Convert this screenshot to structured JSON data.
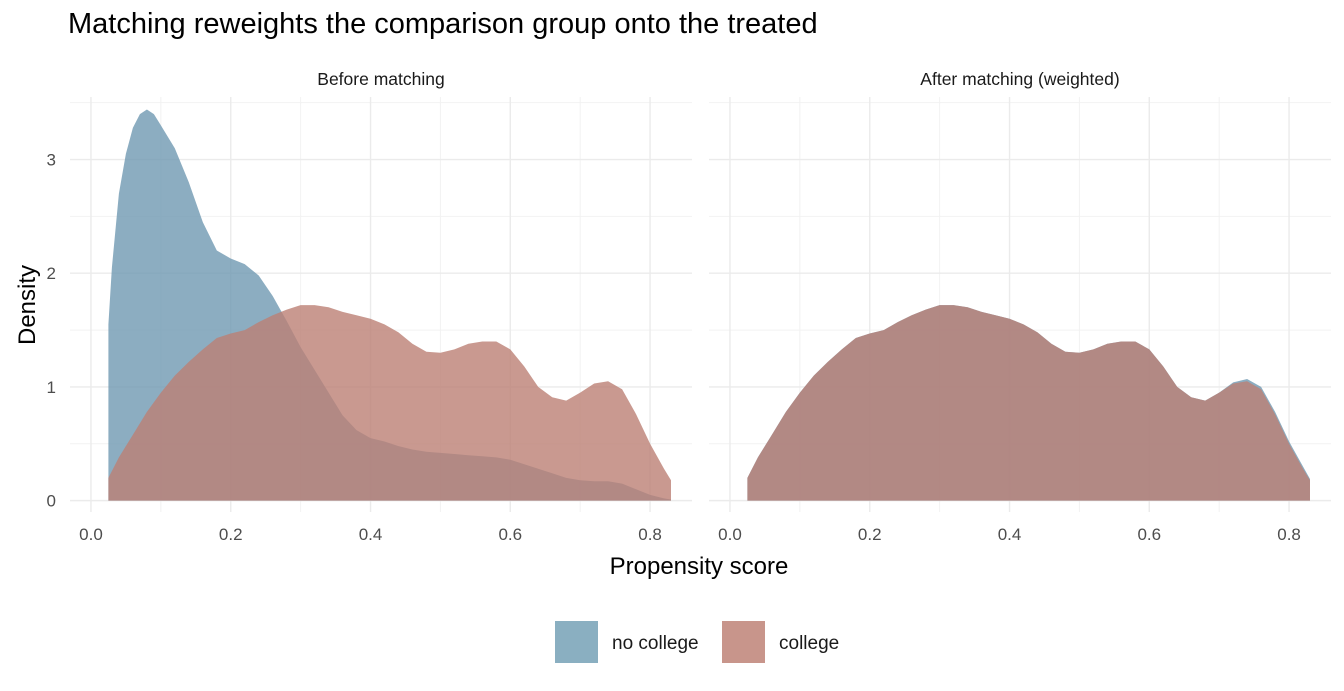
{
  "chart_data": {
    "type": "area",
    "title": "Matching reweights the comparison group onto the treated",
    "xlabel": "Propensity score",
    "ylabel": "Density",
    "xlim": [
      -0.03,
      0.86
    ],
    "ylim": [
      -0.1,
      3.55
    ],
    "x_ticks": [
      "0.0",
      "0.2",
      "0.4",
      "0.6",
      "0.8"
    ],
    "x_tick_values": [
      0.0,
      0.2,
      0.4,
      0.6,
      0.8
    ],
    "y_ticks": [
      "0",
      "1",
      "2",
      "3"
    ],
    "y_tick_values": [
      0,
      1,
      2,
      3
    ],
    "grid": true,
    "legend_position": "bottom",
    "series_colors": {
      "no college": "#6f99b1",
      "college": "#bb7f74"
    },
    "legend": [
      {
        "name": "no college",
        "color": "#8aafc1"
      },
      {
        "name": "college",
        "color": "#c8958b"
      }
    ],
    "panels": [
      {
        "title": "Before matching",
        "series": [
          {
            "name": "no college",
            "x": [
              0.025,
              0.03,
              0.04,
              0.05,
              0.06,
              0.07,
              0.08,
              0.09,
              0.1,
              0.12,
              0.14,
              0.16,
              0.18,
              0.2,
              0.22,
              0.24,
              0.26,
              0.28,
              0.3,
              0.32,
              0.34,
              0.36,
              0.38,
              0.4,
              0.42,
              0.44,
              0.46,
              0.48,
              0.5,
              0.52,
              0.54,
              0.56,
              0.58,
              0.6,
              0.62,
              0.64,
              0.66,
              0.68,
              0.7,
              0.72,
              0.74,
              0.76,
              0.78,
              0.8,
              0.82,
              0.83
            ],
            "y": [
              1.55,
              2.05,
              2.7,
              3.05,
              3.28,
              3.4,
              3.44,
              3.4,
              3.3,
              3.1,
              2.8,
              2.45,
              2.2,
              2.13,
              2.08,
              1.98,
              1.8,
              1.58,
              1.35,
              1.15,
              0.95,
              0.75,
              0.62,
              0.55,
              0.52,
              0.48,
              0.45,
              0.43,
              0.42,
              0.41,
              0.4,
              0.39,
              0.38,
              0.36,
              0.32,
              0.28,
              0.24,
              0.2,
              0.18,
              0.17,
              0.17,
              0.15,
              0.1,
              0.05,
              0.02,
              0.01
            ]
          },
          {
            "name": "college",
            "x": [
              0.025,
              0.04,
              0.06,
              0.08,
              0.1,
              0.12,
              0.14,
              0.16,
              0.18,
              0.2,
              0.22,
              0.24,
              0.26,
              0.28,
              0.3,
              0.32,
              0.34,
              0.36,
              0.38,
              0.4,
              0.42,
              0.44,
              0.46,
              0.48,
              0.5,
              0.52,
              0.54,
              0.56,
              0.58,
              0.6,
              0.62,
              0.64,
              0.66,
              0.68,
              0.7,
              0.72,
              0.74,
              0.76,
              0.78,
              0.8,
              0.82,
              0.83
            ],
            "y": [
              0.2,
              0.38,
              0.58,
              0.78,
              0.95,
              1.1,
              1.22,
              1.33,
              1.43,
              1.47,
              1.5,
              1.57,
              1.63,
              1.68,
              1.72,
              1.72,
              1.7,
              1.66,
              1.63,
              1.6,
              1.55,
              1.48,
              1.38,
              1.31,
              1.3,
              1.33,
              1.38,
              1.4,
              1.4,
              1.33,
              1.18,
              1.0,
              0.91,
              0.88,
              0.95,
              1.03,
              1.05,
              0.98,
              0.76,
              0.5,
              0.28,
              0.18
            ]
          }
        ]
      },
      {
        "title": "After matching (weighted)",
        "series": [
          {
            "name": "no college",
            "x": [
              0.025,
              0.04,
              0.06,
              0.08,
              0.1,
              0.12,
              0.14,
              0.16,
              0.18,
              0.2,
              0.22,
              0.24,
              0.26,
              0.28,
              0.3,
              0.32,
              0.34,
              0.36,
              0.38,
              0.4,
              0.42,
              0.44,
              0.46,
              0.48,
              0.5,
              0.52,
              0.54,
              0.56,
              0.58,
              0.6,
              0.62,
              0.64,
              0.66,
              0.68,
              0.7,
              0.72,
              0.74,
              0.76,
              0.78,
              0.8,
              0.82,
              0.83
            ],
            "y": [
              0.2,
              0.38,
              0.58,
              0.78,
              0.95,
              1.1,
              1.22,
              1.33,
              1.43,
              1.47,
              1.5,
              1.57,
              1.63,
              1.68,
              1.72,
              1.72,
              1.7,
              1.66,
              1.63,
              1.6,
              1.55,
              1.48,
              1.38,
              1.31,
              1.3,
              1.33,
              1.38,
              1.4,
              1.4,
              1.33,
              1.18,
              1.0,
              0.91,
              0.88,
              0.95,
              1.04,
              1.07,
              1.0,
              0.78,
              0.52,
              0.3,
              0.19
            ]
          },
          {
            "name": "college",
            "x": [
              0.025,
              0.04,
              0.06,
              0.08,
              0.1,
              0.12,
              0.14,
              0.16,
              0.18,
              0.2,
              0.22,
              0.24,
              0.26,
              0.28,
              0.3,
              0.32,
              0.34,
              0.36,
              0.38,
              0.4,
              0.42,
              0.44,
              0.46,
              0.48,
              0.5,
              0.52,
              0.54,
              0.56,
              0.58,
              0.6,
              0.62,
              0.64,
              0.66,
              0.68,
              0.7,
              0.72,
              0.74,
              0.76,
              0.78,
              0.8,
              0.82,
              0.83
            ],
            "y": [
              0.2,
              0.38,
              0.58,
              0.78,
              0.95,
              1.1,
              1.22,
              1.33,
              1.43,
              1.47,
              1.5,
              1.57,
              1.63,
              1.68,
              1.72,
              1.72,
              1.7,
              1.66,
              1.63,
              1.6,
              1.55,
              1.48,
              1.38,
              1.31,
              1.3,
              1.33,
              1.38,
              1.4,
              1.4,
              1.33,
              1.18,
              1.0,
              0.91,
              0.88,
              0.95,
              1.03,
              1.05,
              0.98,
              0.76,
              0.5,
              0.28,
              0.18
            ]
          }
        ]
      }
    ]
  }
}
